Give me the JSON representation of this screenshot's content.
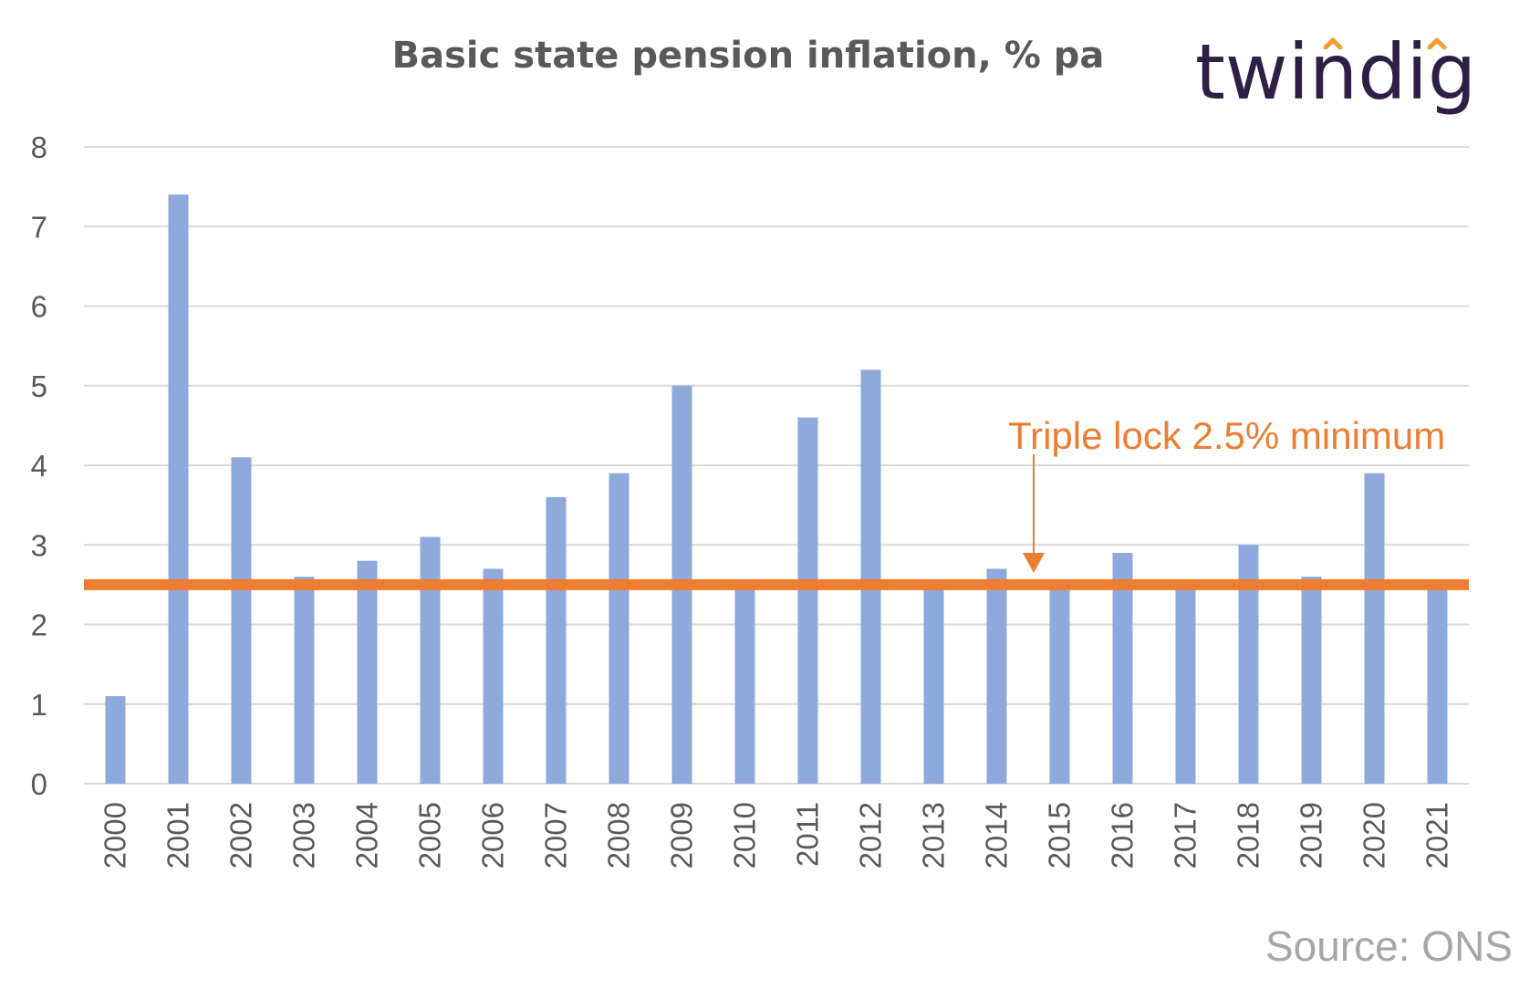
{
  "chart_data": {
    "type": "bar",
    "title": "Basic state pension inflation, % pa",
    "xlabel": "",
    "ylabel": "",
    "categories": [
      "2000",
      "2001",
      "2002",
      "2003",
      "2004",
      "2005",
      "2006",
      "2007",
      "2008",
      "2009",
      "2010",
      "2011",
      "2012",
      "2013",
      "2014",
      "2015",
      "2016",
      "2017",
      "2018",
      "2019",
      "2020",
      "2021"
    ],
    "values": [
      1.1,
      7.4,
      4.1,
      2.6,
      2.8,
      3.1,
      2.7,
      3.6,
      3.9,
      5.0,
      2.5,
      4.6,
      5.2,
      2.5,
      2.7,
      2.5,
      2.9,
      2.5,
      3.0,
      2.6,
      3.9,
      2.5
    ],
    "ylim": [
      0,
      8
    ],
    "yticks": [
      "0",
      "1",
      "2",
      "3",
      "4",
      "5",
      "6",
      "7",
      "8"
    ],
    "grid": true,
    "bar_color": "#8EA9DB",
    "reference_line": {
      "value": 2.5,
      "label": "Triple lock 2.5% minimum",
      "color": "#ED7D31"
    }
  },
  "logo_text": "twindig",
  "logo_colors": {
    "text": "#2E1F47",
    "accent": "#F39C33"
  },
  "source": "Source: ONS"
}
